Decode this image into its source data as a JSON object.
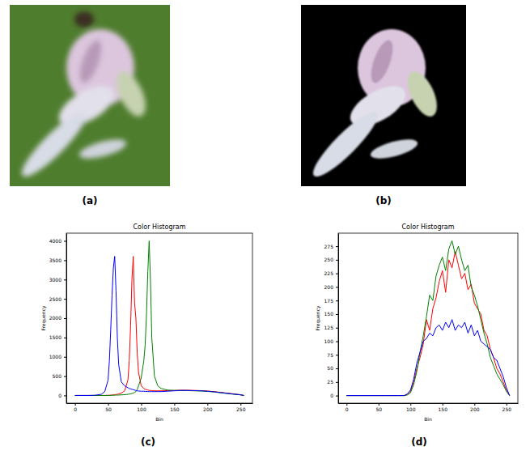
{
  "panel_labels": [
    "(a)",
    "(b)",
    "(c)",
    "(d)"
  ],
  "chart_data": [
    {
      "type": "line",
      "title": "Color Histogram",
      "x_label": "Bin",
      "y_label": "Frequency",
      "x": [
        0,
        10,
        20,
        30,
        40,
        45,
        50,
        52,
        54,
        56,
        58,
        60,
        62,
        64,
        66,
        70,
        75,
        80,
        82,
        84,
        86,
        88,
        90,
        92,
        94,
        96,
        100,
        104,
        106,
        108,
        110,
        112,
        114,
        116,
        120,
        125,
        130,
        140,
        150,
        160,
        170,
        180,
        190,
        200,
        210,
        220,
        230,
        240,
        250,
        255
      ],
      "series": [
        {
          "name": "r",
          "color": "#ff0000",
          "values": [
            0,
            0,
            0,
            0,
            0,
            0,
            5,
            5,
            10,
            10,
            15,
            20,
            25,
            30,
            40,
            60,
            120,
            400,
            900,
            1800,
            3000,
            3600,
            2400,
            2000,
            1100,
            600,
            250,
            180,
            160,
            150,
            140,
            130,
            130,
            125,
            120,
            120,
            120,
            125,
            130,
            135,
            135,
            130,
            125,
            115,
            100,
            80,
            60,
            40,
            20,
            0
          ]
        },
        {
          "name": "g",
          "color": "#008000",
          "values": [
            0,
            0,
            0,
            0,
            0,
            0,
            0,
            0,
            0,
            5,
            5,
            5,
            10,
            10,
            10,
            15,
            20,
            30,
            35,
            40,
            50,
            60,
            80,
            100,
            150,
            250,
            450,
            900,
            1300,
            2100,
            3200,
            4000,
            3000,
            1500,
            500,
            250,
            180,
            140,
            130,
            130,
            125,
            120,
            115,
            105,
            90,
            70,
            50,
            30,
            15,
            0
          ]
        },
        {
          "name": "b",
          "color": "#0000ff",
          "values": [
            0,
            0,
            0,
            5,
            30,
            100,
            400,
            900,
            1700,
            2600,
            3300,
            3600,
            2700,
            1500,
            800,
            350,
            250,
            200,
            180,
            170,
            160,
            150,
            140,
            130,
            120,
            115,
            110,
            110,
            105,
            105,
            100,
            100,
            100,
            100,
            100,
            100,
            100,
            110,
            120,
            130,
            130,
            125,
            120,
            110,
            95,
            75,
            55,
            35,
            15,
            0
          ]
        }
      ],
      "xlim": [
        -13,
        268
      ],
      "xticks": [
        0,
        50,
        100,
        150,
        200,
        250
      ],
      "ylim": [
        -200,
        4200
      ],
      "yticks": [
        0,
        500,
        1000,
        1500,
        2000,
        2500,
        3000,
        3500,
        4000
      ]
    },
    {
      "type": "line",
      "title": "Color Histogram",
      "x_label": "Bin",
      "y_label": "Frequency",
      "x": [
        0,
        20,
        40,
        60,
        80,
        90,
        95,
        100,
        105,
        110,
        115,
        120,
        125,
        130,
        135,
        140,
        145,
        150,
        155,
        160,
        165,
        170,
        175,
        180,
        185,
        190,
        195,
        200,
        205,
        210,
        215,
        220,
        225,
        230,
        235,
        240,
        245,
        250,
        255
      ],
      "series": [
        {
          "name": "r",
          "color": "#ff0000",
          "values": [
            0,
            0,
            0,
            0,
            0,
            0,
            2,
            8,
            25,
            50,
            70,
            95,
            140,
            120,
            160,
            180,
            210,
            230,
            190,
            250,
            235,
            265,
            240,
            215,
            225,
            195,
            205,
            170,
            160,
            150,
            120,
            110,
            85,
            70,
            50,
            40,
            25,
            10,
            0
          ]
        },
        {
          "name": "g",
          "color": "#008000",
          "values": [
            0,
            0,
            0,
            0,
            0,
            0,
            1,
            5,
            20,
            45,
            80,
            110,
            145,
            185,
            175,
            220,
            240,
            255,
            230,
            270,
            285,
            260,
            275,
            250,
            230,
            240,
            200,
            185,
            165,
            140,
            115,
            95,
            70,
            55,
            40,
            30,
            20,
            8,
            0
          ]
        },
        {
          "name": "b",
          "color": "#0000ff",
          "values": [
            0,
            0,
            0,
            0,
            0,
            0,
            3,
            10,
            30,
            60,
            80,
            100,
            105,
            115,
            110,
            125,
            130,
            120,
            135,
            125,
            140,
            120,
            130,
            125,
            135,
            115,
            130,
            110,
            120,
            100,
            95,
            90,
            85,
            70,
            65,
            50,
            35,
            15,
            0
          ]
        }
      ],
      "xlim": [
        -13,
        268
      ],
      "xticks": [
        0,
        50,
        100,
        150,
        200,
        250
      ],
      "ylim": [
        -14,
        299
      ],
      "yticks": [
        0,
        25,
        50,
        75,
        100,
        125,
        150,
        175,
        200,
        225,
        250,
        275
      ]
    }
  ]
}
